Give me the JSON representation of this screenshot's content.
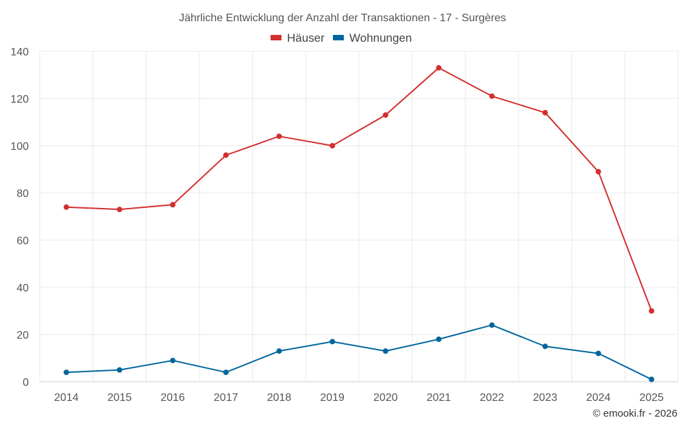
{
  "chart_data": {
    "type": "line",
    "title": "Jährliche Entwicklung der Anzahl der Transaktionen - 17 - Surgères",
    "categories": [
      "2014",
      "2015",
      "2016",
      "2017",
      "2018",
      "2019",
      "2020",
      "2021",
      "2022",
      "2023",
      "2024",
      "2025"
    ],
    "series": [
      {
        "name": "Häuser",
        "color": "#d32f2f",
        "values": [
          74,
          73,
          75,
          96,
          104,
          100,
          113,
          133,
          121,
          114,
          89,
          30
        ]
      },
      {
        "name": "Wohnungen",
        "color": "#01669e",
        "values": [
          4,
          5,
          9,
          4,
          13,
          17,
          13,
          18,
          24,
          15,
          12,
          1
        ]
      }
    ],
    "xlabel": "",
    "ylabel": "",
    "ylim": [
      0,
      140
    ],
    "yticks": [
      "0",
      "20",
      "40",
      "60",
      "80",
      "100",
      "120",
      "140"
    ],
    "grid": true,
    "legend": "top-center"
  },
  "copyright": "© emooki.fr - 2026"
}
